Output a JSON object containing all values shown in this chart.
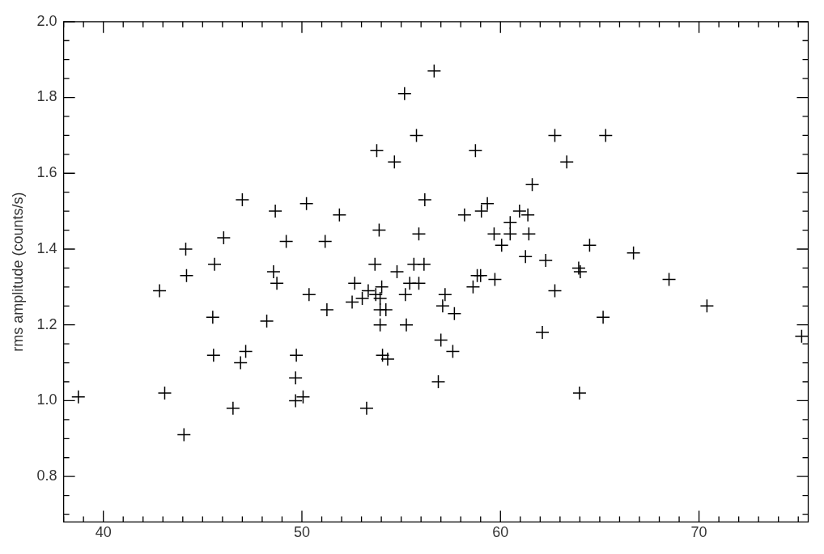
{
  "chart_data": {
    "type": "scatter",
    "ylabel": "rms amplitude (counts/s)",
    "marker": "cross",
    "legend": false,
    "xlim": [
      38,
      75.5
    ],
    "ylim": [
      0.68,
      2.0
    ],
    "xticks": [
      {
        "value": 38,
        "label": null
      },
      {
        "value": 39,
        "label": null
      },
      40,
      {
        "value": 41,
        "label": null
      },
      {
        "value": 42,
        "label": null
      },
      {
        "value": 43,
        "label": null
      },
      {
        "value": 44,
        "label": null
      },
      {
        "value": 45,
        "label": null
      },
      {
        "value": 46,
        "label": null
      },
      {
        "value": 47,
        "label": null
      },
      {
        "value": 48,
        "label": null
      },
      {
        "value": 49,
        "label": null
      },
      50,
      {
        "value": 51,
        "label": null
      },
      {
        "value": 52,
        "label": null
      },
      {
        "value": 53,
        "label": null
      },
      {
        "value": 54,
        "label": null
      },
      {
        "value": 55,
        "label": null
      },
      {
        "value": 56,
        "label": null
      },
      {
        "value": 57,
        "label": null
      },
      {
        "value": 58,
        "label": null
      },
      {
        "value": 59,
        "label": null
      },
      60,
      {
        "value": 61,
        "label": null
      },
      {
        "value": 62,
        "label": null
      },
      {
        "value": 63,
        "label": null
      },
      {
        "value": 64,
        "label": null
      },
      {
        "value": 65,
        "label": null
      },
      {
        "value": 66,
        "label": null
      },
      {
        "value": 67,
        "label": null
      },
      {
        "value": 68,
        "label": null
      },
      {
        "value": 69,
        "label": null
      },
      70,
      {
        "value": 71,
        "label": null
      },
      {
        "value": 72,
        "label": null
      },
      {
        "value": 73,
        "label": null
      },
      {
        "value": 74,
        "label": null
      },
      {
        "value": 75,
        "label": null
      }
    ],
    "yticks": [
      {
        "value": 0.7,
        "label": null
      },
      {
        "value": 0.75,
        "label": null
      },
      {
        "value": 0.8,
        "label": "0.8"
      },
      {
        "value": 0.85,
        "label": null
      },
      {
        "value": 0.9,
        "label": null
      },
      {
        "value": 0.95,
        "label": null
      },
      {
        "value": 1.0,
        "label": "1.0"
      },
      {
        "value": 1.05,
        "label": null
      },
      {
        "value": 1.1,
        "label": null
      },
      {
        "value": 1.15,
        "label": null
      },
      {
        "value": 1.2,
        "label": "1.2"
      },
      {
        "value": 1.25,
        "label": null
      },
      {
        "value": 1.3,
        "label": null
      },
      {
        "value": 1.35,
        "label": null
      },
      {
        "value": 1.4,
        "label": "1.4"
      },
      {
        "value": 1.45,
        "label": null
      },
      {
        "value": 1.5,
        "label": null
      },
      {
        "value": 1.55,
        "label": null
      },
      {
        "value": 1.6,
        "label": "1.6"
      },
      {
        "value": 1.65,
        "label": null
      },
      {
        "value": 1.7,
        "label": null
      },
      {
        "value": 1.75,
        "label": null
      },
      {
        "value": 1.8,
        "label": "1.8"
      },
      {
        "value": 1.85,
        "label": null
      },
      {
        "value": 1.9,
        "label": null
      },
      {
        "value": 1.95,
        "label": null
      },
      {
        "value": 2.0,
        "label": "2.0"
      }
    ],
    "series": [
      {
        "color": "#000000",
        "x": [
          38.74,
          42.83,
          43.09,
          44.15,
          44.19,
          44.06,
          45.51,
          45.6,
          45.55,
          46.06,
          46.53,
          46.91,
          47.0,
          47.17,
          48.23,
          48.66,
          48.57,
          48.74,
          49.21,
          49.68,
          49.68,
          49.72,
          50.06,
          50.23,
          50.36,
          51.17,
          51.26,
          51.89,
          52.66,
          52.53,
          53.04,
          53.26,
          53.34,
          53.68,
          53.72,
          53.77,
          53.89,
          53.94,
          53.94,
          53.94,
          54.02,
          54.06,
          54.23,
          54.32,
          54.66,
          54.79,
          55.17,
          55.21,
          55.26,
          55.43,
          55.64,
          55.77,
          55.89,
          55.89,
          56.15,
          56.19,
          56.66,
          56.87,
          57.0,
          57.09,
          57.21,
          57.6,
          57.68,
          58.19,
          58.62,
          58.74,
          58.83,
          59.0,
          59.04,
          59.34,
          59.68,
          59.72,
          60.06,
          60.49,
          60.49,
          60.96,
          61.26,
          61.38,
          61.43,
          61.6,
          62.11,
          62.28,
          62.74,
          62.74,
          63.34,
          63.94,
          64.02,
          63.98,
          64.49,
          65.17,
          65.3,
          66.7,
          68.49,
          70.4,
          75.17
        ],
        "values": [
          1.01,
          1.29,
          1.02,
          1.4,
          1.33,
          0.91,
          1.22,
          1.36,
          1.12,
          1.43,
          0.98,
          1.1,
          1.53,
          1.13,
          1.21,
          1.5,
          1.34,
          1.31,
          1.42,
          1.06,
          1.0,
          1.12,
          1.01,
          1.52,
          1.28,
          1.42,
          1.24,
          1.49,
          1.31,
          1.26,
          1.27,
          0.98,
          1.29,
          1.36,
          1.28,
          1.66,
          1.45,
          1.27,
          1.24,
          1.2,
          1.3,
          1.12,
          1.24,
          1.11,
          1.63,
          1.34,
          1.81,
          1.28,
          1.2,
          1.31,
          1.36,
          1.7,
          1.44,
          1.31,
          1.36,
          1.53,
          1.87,
          1.05,
          1.16,
          1.25,
          1.28,
          1.13,
          1.23,
          1.49,
          1.3,
          1.66,
          1.33,
          1.33,
          1.5,
          1.52,
          1.44,
          1.32,
          1.41,
          1.47,
          1.44,
          1.5,
          1.38,
          1.49,
          1.44,
          1.57,
          1.18,
          1.37,
          1.7,
          1.29,
          1.63,
          1.35,
          1.34,
          1.02,
          1.41,
          1.22,
          1.7,
          1.39,
          1.32,
          1.25,
          1.17
        ]
      }
    ]
  }
}
